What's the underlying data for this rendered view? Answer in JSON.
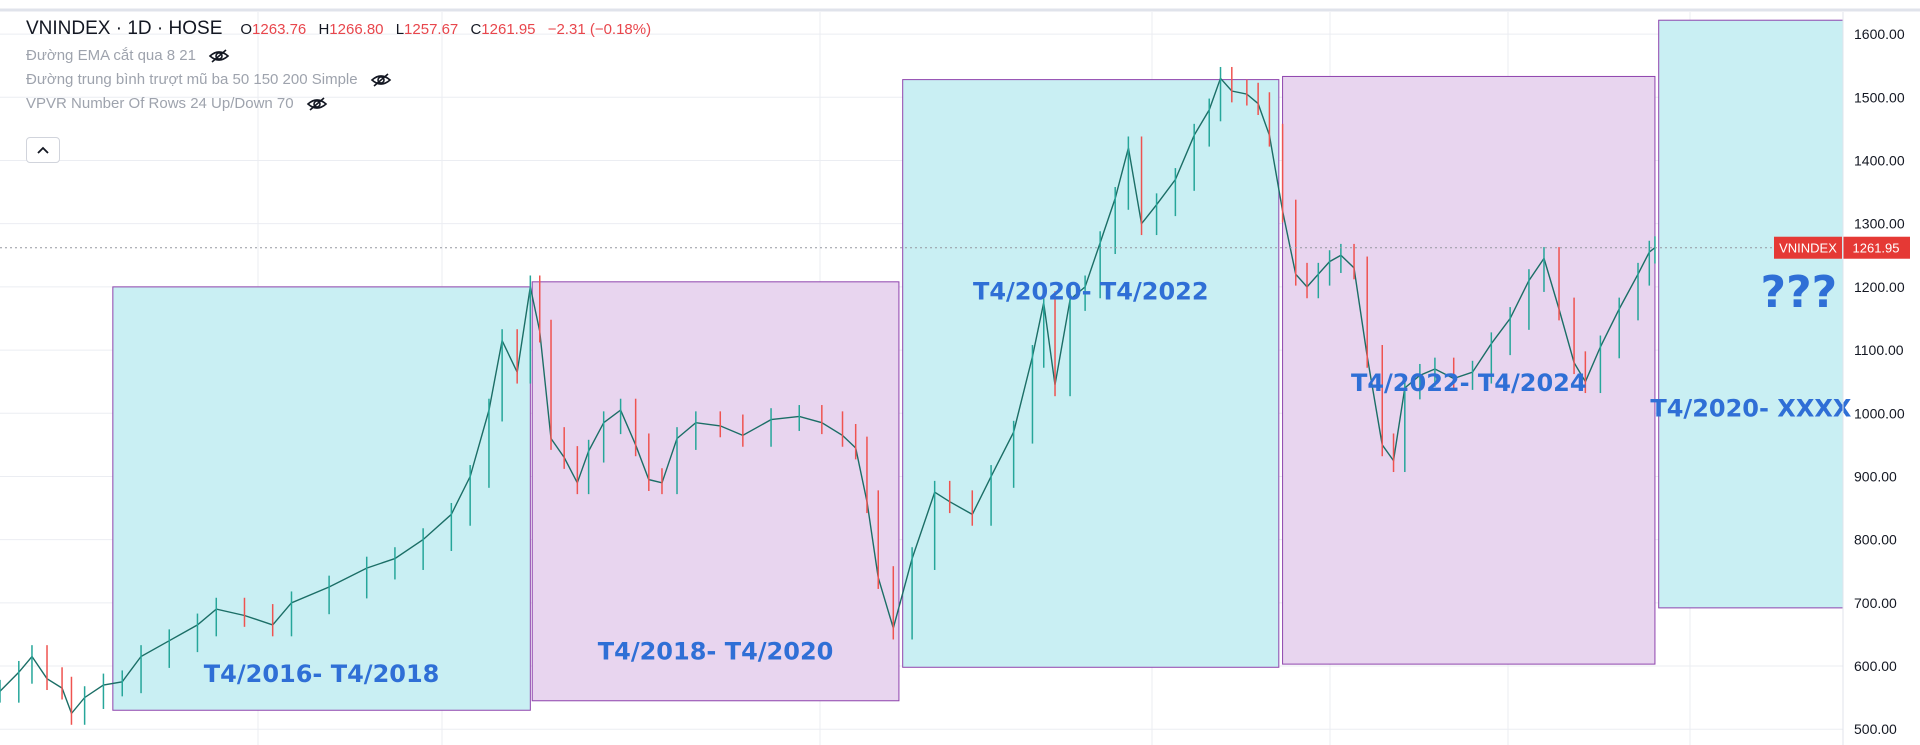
{
  "header": {
    "title": "VNINDEX · 1D · HOSE",
    "open_label": "O",
    "open": "1263.76",
    "high_label": "H",
    "high": "1266.80",
    "low_label": "L",
    "low": "1257.67",
    "close_label": "C",
    "close": "1261.95",
    "change": "−2.31 (−0.18%)",
    "indicators": [
      "Đường EMA cắt qua 8 21",
      "Đường trung bình trượt mũ ba 50 150 200 Simple",
      "VPVR Number Of Rows 24 Up/Down 70"
    ]
  },
  "colors": {
    "cyan_box": "#c9eff3",
    "pink_box": "#e8d5ef",
    "box_border": "#8e44ad",
    "label_blue": "#2f6fd6",
    "up_candle": "#26a69a",
    "down_candle": "#ef5350",
    "price_tag": "#e53935",
    "grid": "#ebedf2"
  },
  "chart_data": {
    "type": "line",
    "symbol": "VNINDEX",
    "last_price": 1261.95,
    "last_price_label": "1261.95",
    "ylim": [
      475,
      1635
    ],
    "yticks": [
      500,
      600,
      700,
      800,
      900,
      1000,
      1100,
      1200,
      1300,
      1400,
      1500,
      1600
    ],
    "ytick_labels": [
      "500.00",
      "600.00",
      "700.00",
      "800.00",
      "900.00",
      "1000.00",
      "1100.00",
      "1200.00",
      "1300.00",
      "1400.00",
      "1500.00",
      "1600.00"
    ],
    "xlim": [
      2015.45,
      2025.25
    ],
    "grid": true,
    "series": [
      {
        "values": [
          [
            2015.45,
            560
          ],
          [
            2015.55,
            590
          ],
          [
            2015.62,
            615
          ],
          [
            2015.7,
            580
          ],
          [
            2015.78,
            565
          ],
          [
            2015.83,
            525
          ],
          [
            2015.9,
            550
          ],
          [
            2016.0,
            570
          ],
          [
            2016.1,
            575
          ],
          [
            2016.2,
            615
          ],
          [
            2016.35,
            640
          ],
          [
            2016.5,
            665
          ],
          [
            2016.6,
            690
          ],
          [
            2016.75,
            680
          ],
          [
            2016.9,
            665
          ],
          [
            2017.0,
            700
          ],
          [
            2017.2,
            725
          ],
          [
            2017.4,
            755
          ],
          [
            2017.55,
            770
          ],
          [
            2017.7,
            800
          ],
          [
            2017.85,
            840
          ],
          [
            2017.95,
            900
          ],
          [
            2018.05,
            1005
          ],
          [
            2018.12,
            1115
          ],
          [
            2018.2,
            1065
          ],
          [
            2018.27,
            1200
          ],
          [
            2018.32,
            1130
          ],
          [
            2018.38,
            960
          ],
          [
            2018.45,
            930
          ],
          [
            2018.52,
            890
          ],
          [
            2018.58,
            940
          ],
          [
            2018.66,
            985
          ],
          [
            2018.75,
            1005
          ],
          [
            2018.83,
            950
          ],
          [
            2018.9,
            895
          ],
          [
            2018.97,
            890
          ],
          [
            2019.05,
            960
          ],
          [
            2019.15,
            985
          ],
          [
            2019.28,
            980
          ],
          [
            2019.4,
            965
          ],
          [
            2019.55,
            990
          ],
          [
            2019.7,
            995
          ],
          [
            2019.82,
            985
          ],
          [
            2019.93,
            965
          ],
          [
            2020.0,
            945
          ],
          [
            2020.06,
            860
          ],
          [
            2020.12,
            740
          ],
          [
            2020.2,
            660
          ],
          [
            2020.3,
            770
          ],
          [
            2020.42,
            875
          ],
          [
            2020.5,
            860
          ],
          [
            2020.62,
            840
          ],
          [
            2020.72,
            900
          ],
          [
            2020.84,
            970
          ],
          [
            2020.94,
            1090
          ],
          [
            2021.0,
            1175
          ],
          [
            2021.06,
            1045
          ],
          [
            2021.14,
            1180
          ],
          [
            2021.22,
            1200
          ],
          [
            2021.3,
            1270
          ],
          [
            2021.38,
            1340
          ],
          [
            2021.45,
            1420
          ],
          [
            2021.52,
            1300
          ],
          [
            2021.6,
            1330
          ],
          [
            2021.7,
            1370
          ],
          [
            2021.8,
            1440
          ],
          [
            2021.88,
            1480
          ],
          [
            2021.94,
            1530
          ],
          [
            2022.0,
            1510
          ],
          [
            2022.08,
            1505
          ],
          [
            2022.14,
            1490
          ],
          [
            2022.2,
            1440
          ],
          [
            2022.27,
            1320
          ],
          [
            2022.34,
            1220
          ],
          [
            2022.4,
            1200
          ],
          [
            2022.46,
            1220
          ],
          [
            2022.52,
            1240
          ],
          [
            2022.58,
            1250
          ],
          [
            2022.65,
            1230
          ],
          [
            2022.72,
            1090
          ],
          [
            2022.8,
            950
          ],
          [
            2022.86,
            925
          ],
          [
            2022.92,
            1040
          ],
          [
            2023.0,
            1060
          ],
          [
            2023.08,
            1070
          ],
          [
            2023.18,
            1055
          ],
          [
            2023.28,
            1065
          ],
          [
            2023.38,
            1110
          ],
          [
            2023.48,
            1150
          ],
          [
            2023.58,
            1210
          ],
          [
            2023.66,
            1245
          ],
          [
            2023.74,
            1165
          ],
          [
            2023.82,
            1080
          ],
          [
            2023.88,
            1050
          ],
          [
            2023.96,
            1105
          ],
          [
            2024.06,
            1165
          ],
          [
            2024.16,
            1220
          ],
          [
            2024.22,
            1255
          ],
          [
            2024.25,
            1262
          ]
        ]
      }
    ],
    "boxes": [
      {
        "label": "T4/2016- T4/2018",
        "fill": "cyan",
        "x0": 2016.05,
        "x1": 2018.27,
        "y0": 530,
        "y1": 1200
      },
      {
        "label": "T4/2018- T4/2020",
        "fill": "pink",
        "x0": 2018.28,
        "x1": 2020.23,
        "y0": 545,
        "y1": 1208
      },
      {
        "label": "T4/2020- T4/2022",
        "fill": "cyan",
        "x0": 2020.25,
        "x1": 2022.25,
        "y0": 598,
        "y1": 1528
      },
      {
        "label": "T4/2022- T4/2024",
        "fill": "pink",
        "x0": 2022.27,
        "x1": 2024.25,
        "y0": 603,
        "y1": 1533
      },
      {
        "label": "T4/2020- XXXX",
        "fill": "cyan",
        "x0": 2024.27,
        "x1": 2025.25,
        "y0": 692,
        "y1": 1622
      }
    ],
    "annotations": [
      {
        "text": "???"
      }
    ]
  }
}
